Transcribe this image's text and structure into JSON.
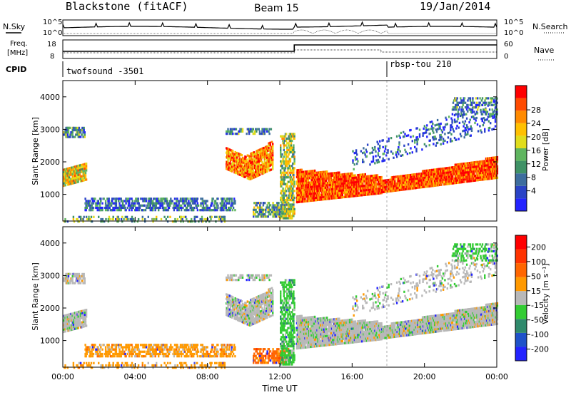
{
  "header": {
    "title": "Blackstone (fitACF)",
    "beam": "Beam 15",
    "date": "19/Jan/2014"
  },
  "noise_panel": {
    "left_label": "N.Sky",
    "right_label": "N.Search",
    "ticks_left": [
      "10^5",
      "10^0"
    ],
    "ticks_right": [
      "10^5",
      "10^0"
    ]
  },
  "freq_panel": {
    "left_label_1": "Freq.",
    "left_label_2": "[MHz]",
    "right_label": "Nave",
    "ticks_left": [
      "18",
      "8"
    ],
    "ticks_right": [
      "60",
      "0"
    ]
  },
  "cpid": {
    "label": "CPID",
    "modes": [
      {
        "name": "twofsound -3501",
        "start_hour": 0
      },
      {
        "name": "rbsp-tou 210",
        "start_hour": 17.6
      }
    ]
  },
  "chart_data": [
    {
      "type": "heatmap",
      "title": "",
      "xlabel": "",
      "ylabel": "Slant Range [km]",
      "xlim": [
        0,
        24
      ],
      "ylim": [
        180,
        4500
      ],
      "x_ticks": [
        0,
        4,
        8,
        12,
        16,
        20,
        24
      ],
      "y_ticks": [
        1000,
        2000,
        3000,
        4000
      ],
      "colorbar": {
        "label": "Power [dB]",
        "ticks": [
          "4",
          "8",
          "12",
          "16",
          "20",
          "24",
          "28"
        ],
        "colors": [
          "#2323ff",
          "#2a43c6",
          "#3d6d9e",
          "#3f9266",
          "#5fb55f",
          "#e0dd1c",
          "#ffc000",
          "#ff8a00",
          "#ff4b00",
          "#ff0000"
        ]
      }
    },
    {
      "type": "heatmap",
      "title": "",
      "xlabel": "Time UT",
      "ylabel": "Slant Range [km]",
      "xlim": [
        0,
        24
      ],
      "ylim": [
        180,
        4500
      ],
      "x_ticks": [
        0,
        4,
        8,
        12,
        16,
        20,
        24
      ],
      "x_tick_labels": [
        "00:00",
        "04:00",
        "08:00",
        "12:00",
        "16:00",
        "20:00",
        "00:00"
      ],
      "y_ticks": [
        1000,
        2000,
        3000,
        4000
      ],
      "colorbar": {
        "label": "Velocity [m s⁻¹]",
        "ticks": [
          "200",
          "100",
          "50",
          "15",
          "-15",
          "-50",
          "-100",
          "-200"
        ],
        "colors": [
          "#2323ff",
          "#1f52c9",
          "#2f8a6c",
          "#33cc33",
          "#b8b8b8",
          "#ff9900",
          "#ff6600",
          "#ff3300",
          "#ff0000"
        ]
      }
    }
  ]
}
